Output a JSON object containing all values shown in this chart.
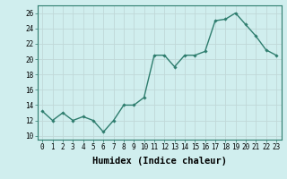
{
  "x": [
    0,
    1,
    2,
    3,
    4,
    5,
    6,
    7,
    8,
    9,
    10,
    11,
    12,
    13,
    14,
    15,
    16,
    17,
    18,
    19,
    20,
    21,
    22,
    23
  ],
  "y": [
    13.2,
    12.0,
    13.0,
    12.0,
    12.5,
    12.0,
    10.5,
    12.0,
    14.0,
    14.0,
    15.0,
    20.5,
    20.5,
    19.0,
    20.5,
    20.5,
    21.0,
    25.0,
    25.2,
    26.0,
    24.5,
    23.0,
    21.2,
    20.5
  ],
  "line_color": "#2e7d6e",
  "marker": "D",
  "marker_size": 1.8,
  "bg_color": "#d0eeee",
  "grid_color": "#c0d8d8",
  "xlabel": "Humidex (Indice chaleur)",
  "xlim": [
    -0.5,
    23.5
  ],
  "ylim": [
    9.5,
    27.0
  ],
  "yticks": [
    10,
    12,
    14,
    16,
    18,
    20,
    22,
    24,
    26
  ],
  "xticks": [
    0,
    1,
    2,
    3,
    4,
    5,
    6,
    7,
    8,
    9,
    10,
    11,
    12,
    13,
    14,
    15,
    16,
    17,
    18,
    19,
    20,
    21,
    22,
    23
  ],
  "tick_fontsize": 5.5,
  "xlabel_fontsize": 7.5,
  "line_width": 1.0
}
